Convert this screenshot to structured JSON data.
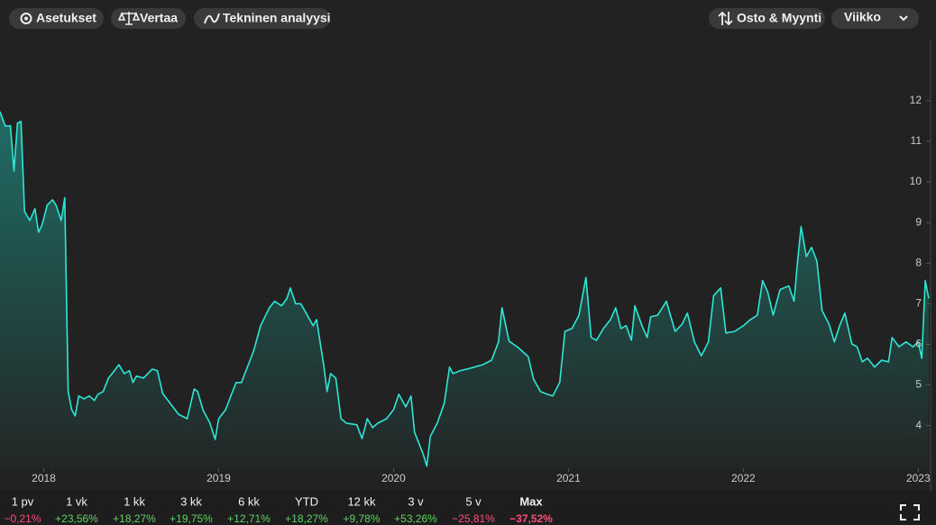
{
  "toolbar": {
    "left": [
      "Asetukset",
      "Vertaa",
      "Tekninen analyysi"
    ],
    "right": [
      "Osto & Myynti",
      "Viikko"
    ]
  },
  "chart_data": {
    "type": "line",
    "color": "#2ee6d6",
    "area": true,
    "x": [
      2017.75,
      2017.78,
      2017.81,
      2017.83,
      2017.85,
      2017.87,
      2017.89,
      2017.92,
      2017.95,
      2017.97,
      2017.99,
      2018.02,
      2018.05,
      2018.07,
      2018.1,
      2018.12,
      2018.14,
      2018.16,
      2018.18,
      2018.2,
      2018.23,
      2018.26,
      2018.29,
      2018.31,
      2018.34,
      2018.37,
      2018.4,
      2018.43,
      2018.46,
      2018.49,
      2018.51,
      2018.53,
      2018.57,
      2018.62,
      2018.65,
      2018.68,
      2018.73,
      2018.77,
      2018.82,
      2018.86,
      2018.88,
      2018.91,
      2018.95,
      2018.98,
      2019.0,
      2019.04,
      2019.07,
      2019.1,
      2019.13,
      2019.17,
      2019.2,
      2019.24,
      2019.29,
      2019.32,
      2019.36,
      2019.39,
      2019.41,
      2019.44,
      2019.47,
      2019.5,
      2019.54,
      2019.56,
      2019.6,
      2019.62,
      2019.64,
      2019.67,
      2019.7,
      2019.73,
      2019.79,
      2019.82,
      2019.85,
      2019.88,
      2019.91,
      2019.96,
      2020.0,
      2020.03,
      2020.07,
      2020.1,
      2020.12,
      2020.15,
      2020.17,
      2020.19,
      2020.21,
      2020.25,
      2020.29,
      2020.32,
      2020.34,
      2020.38,
      2020.42,
      2020.46,
      2020.51,
      2020.56,
      2020.6,
      2020.62,
      2020.66,
      2020.71,
      2020.77,
      2020.8,
      2020.84,
      2020.88,
      2020.91,
      2020.95,
      2020.98,
      2021.02,
      2021.06,
      2021.1,
      2021.13,
      2021.16,
      2021.2,
      2021.24,
      2021.27,
      2021.3,
      2021.33,
      2021.36,
      2021.38,
      2021.42,
      2021.45,
      2021.47,
      2021.51,
      2021.56,
      2021.61,
      2021.65,
      2021.68,
      2021.72,
      2021.76,
      2021.8,
      2021.83,
      2021.87,
      2021.9,
      2021.95,
      2022.0,
      2022.04,
      2022.08,
      2022.11,
      2022.14,
      2022.17,
      2022.21,
      2022.26,
      2022.29,
      2022.31,
      2022.33,
      2022.36,
      2022.39,
      2022.42,
      2022.45,
      2022.49,
      2022.52,
      2022.55,
      2022.58,
      2022.62,
      2022.65,
      2022.68,
      2022.71,
      2022.75,
      2022.79,
      2022.83,
      2022.85,
      2022.89,
      2022.93,
      2022.97,
      2023.0,
      2023.02,
      2023.04,
      2023.06
    ],
    "values": [
      11.73,
      11.38,
      11.38,
      10.27,
      11.45,
      11.49,
      9.27,
      9.05,
      9.34,
      8.76,
      8.94,
      9.43,
      9.56,
      9.43,
      9.05,
      9.61,
      4.84,
      4.39,
      4.24,
      4.73,
      4.66,
      4.73,
      4.62,
      4.77,
      4.84,
      5.17,
      5.33,
      5.5,
      5.28,
      5.35,
      5.06,
      5.22,
      5.17,
      5.39,
      5.35,
      4.79,
      4.51,
      4.28,
      4.17,
      4.9,
      4.84,
      4.39,
      4.06,
      3.66,
      4.17,
      4.39,
      4.73,
      5.06,
      5.06,
      5.5,
      5.84,
      6.46,
      6.9,
      7.06,
      6.95,
      7.13,
      7.39,
      7.0,
      7.0,
      6.77,
      6.46,
      6.61,
      5.5,
      4.84,
      5.28,
      5.17,
      4.17,
      4.06,
      4.02,
      3.68,
      4.17,
      3.95,
      4.06,
      4.17,
      4.39,
      4.77,
      4.46,
      4.73,
      3.84,
      3.51,
      3.29,
      3.0,
      3.73,
      4.06,
      4.55,
      5.44,
      5.28,
      5.35,
      5.39,
      5.44,
      5.5,
      5.61,
      6.06,
      6.9,
      6.08,
      5.93,
      5.7,
      5.15,
      4.84,
      4.77,
      4.73,
      5.06,
      6.32,
      6.39,
      6.72,
      7.65,
      6.17,
      6.1,
      6.39,
      6.61,
      6.9,
      6.39,
      6.46,
      6.1,
      6.95,
      6.46,
      6.17,
      6.68,
      6.72,
      7.06,
      6.32,
      6.5,
      6.77,
      6.06,
      5.72,
      6.06,
      7.2,
      7.39,
      6.28,
      6.32,
      6.46,
      6.61,
      6.72,
      7.57,
      7.28,
      6.72,
      7.35,
      7.44,
      7.06,
      8.05,
      8.9,
      8.16,
      8.39,
      8.05,
      6.83,
      6.5,
      6.06,
      6.46,
      6.77,
      6.01,
      5.94,
      5.57,
      5.66,
      5.44,
      5.61,
      5.57,
      6.17,
      5.94,
      6.06,
      5.94,
      6.06,
      5.66,
      7.57,
      7.13
    ],
    "xlim": [
      2017.75,
      2023.06
    ],
    "xticks": [
      2018,
      2019,
      2020,
      2021,
      2022,
      2023
    ],
    "ylim": [
      2.95,
      13.37
    ],
    "yticks": [
      4,
      5,
      6,
      7,
      8,
      9,
      10,
      11,
      12
    ]
  },
  "periods": {
    "selected": 9,
    "items": [
      {
        "label": "1 pv",
        "change": "−0,21%"
      },
      {
        "label": "1 vk",
        "change": "+23,56%"
      },
      {
        "label": "1 kk",
        "change": "+18,27%"
      },
      {
        "label": "3 kk",
        "change": "+19,75%"
      },
      {
        "label": "6 kk",
        "change": "+12,71%"
      },
      {
        "label": "YTD",
        "change": "+18,27%"
      },
      {
        "label": "12 kk",
        "change": "+9,78%"
      },
      {
        "label": "3 v",
        "change": "+53,26%"
      },
      {
        "label": "5 v",
        "change": "−25,81%"
      },
      {
        "label": "Max",
        "change": "−37,52%"
      }
    ]
  }
}
